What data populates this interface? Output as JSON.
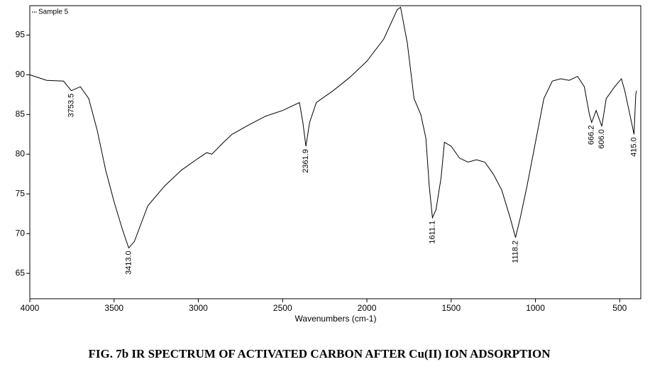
{
  "chart_data": {
    "type": "line",
    "title": "FIG. 7b IR SPECTRUM OF ACTIVATED CARBON AFTER Cu(II) ION ADSORPTION",
    "x_label": "Wavenumbers (cm-1)",
    "x": [
      4000,
      3900,
      3800,
      3753.5,
      3700,
      3650,
      3600,
      3550,
      3500,
      3450,
      3413,
      3380,
      3300,
      3200,
      3100,
      3000,
      2950,
      2920,
      2850,
      2800,
      2700,
      2600,
      2500,
      2400,
      2380,
      2361.9,
      2340,
      2300,
      2200,
      2100,
      2000,
      1900,
      1820,
      1800,
      1760,
      1720,
      1680,
      1650,
      1630,
      1611.1,
      1590,
      1560,
      1540,
      1500,
      1450,
      1400,
      1350,
      1300,
      1250,
      1200,
      1150,
      1118.2,
      1090,
      1050,
      1000,
      950,
      900,
      850,
      800,
      750,
      710,
      680,
      666.2,
      640,
      606,
      580,
      530,
      490,
      470,
      440,
      415,
      405,
      400
    ],
    "series": [
      {
        "name": "Sample 5",
        "color": "#000000",
        "values": [
          90,
          89.3,
          89.2,
          88,
          88.5,
          87,
          83,
          78,
          74,
          70.5,
          68.2,
          69,
          73.5,
          76,
          78,
          79.5,
          80.2,
          80,
          81.5,
          82.5,
          83.7,
          84.8,
          85.5,
          86.5,
          84,
          81,
          84,
          86.5,
          88,
          89.7,
          91.7,
          94.5,
          98.2,
          98.5,
          94,
          87,
          85,
          82,
          76,
          72,
          73,
          77,
          81.5,
          81,
          79.5,
          79,
          79.3,
          79,
          77.5,
          75.5,
          72,
          69.5,
          72,
          76,
          81.5,
          87,
          89.2,
          89.5,
          89.3,
          89.8,
          88.5,
          85,
          84,
          85.5,
          83.5,
          87,
          88.5,
          89.5,
          88,
          85,
          82.5,
          87.5,
          88
        ]
      }
    ],
    "annotations": [
      {
        "x": 3753.5,
        "y": 88,
        "label": "3753.5"
      },
      {
        "x": 3413,
        "y": 68.2,
        "label": "3413.0"
      },
      {
        "x": 2361.9,
        "y": 81,
        "label": "2361.9"
      },
      {
        "x": 1611.1,
        "y": 72,
        "label": "1611.1"
      },
      {
        "x": 1118.2,
        "y": 69.5,
        "label": "1118.2"
      },
      {
        "x": 666.2,
        "y": 84,
        "label": "666.2"
      },
      {
        "x": 606,
        "y": 83.5,
        "label": "606.0"
      },
      {
        "x": 415,
        "y": 82.5,
        "label": "415.0"
      }
    ],
    "xlim": [
      4000,
      375
    ],
    "xticks": [
      4000,
      3500,
      3000,
      2500,
      2000,
      1500,
      1000,
      500
    ],
    "ylim": [
      61.8,
      98.7
    ],
    "yticks": [
      65,
      70,
      75,
      80,
      85,
      90,
      95
    ],
    "grid": false
  }
}
